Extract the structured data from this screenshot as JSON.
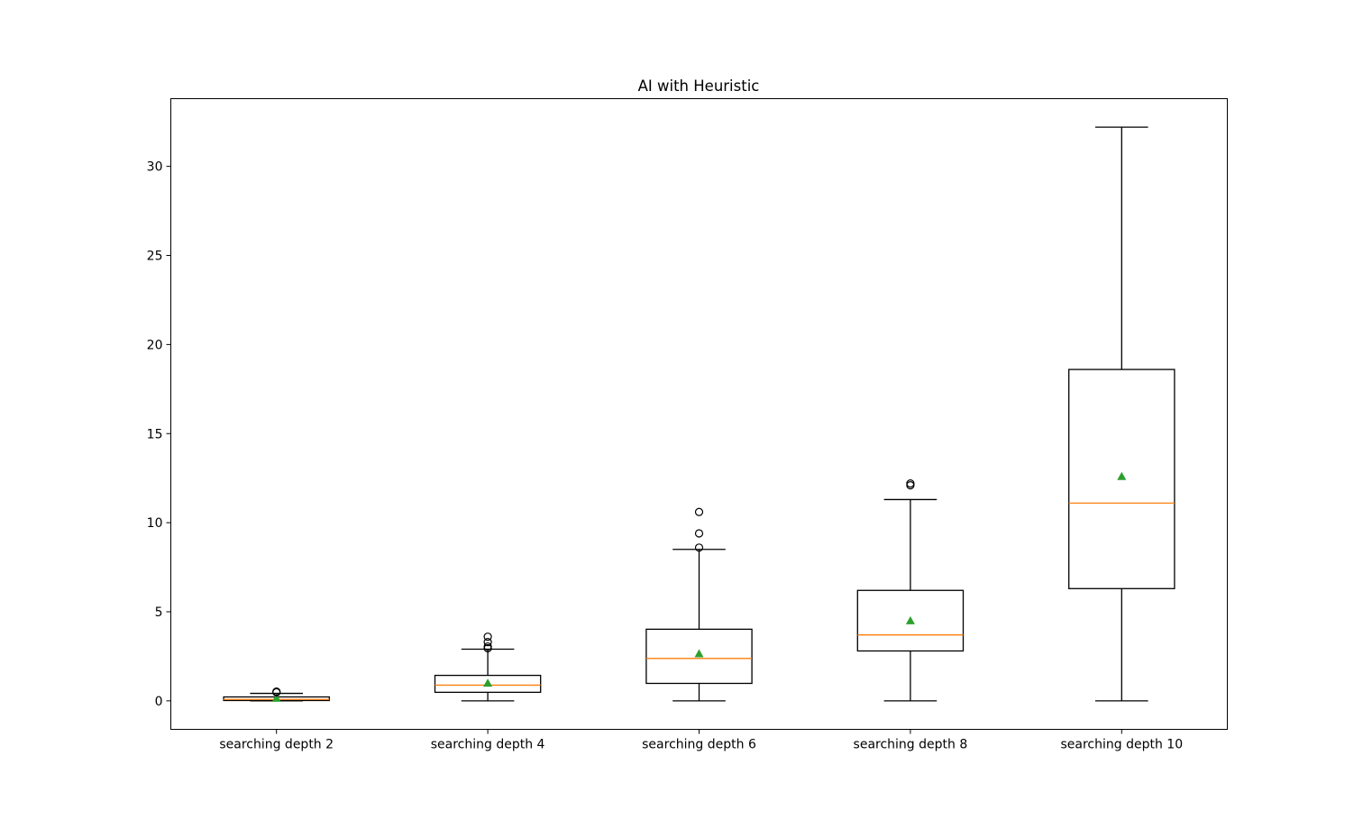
{
  "chart_data": {
    "type": "box",
    "title": "AI with Heuristic",
    "xlabel": "",
    "ylabel": "",
    "ylim": [
      -1.6,
      33.8
    ],
    "yticks": [
      0,
      5,
      10,
      15,
      20,
      25,
      30
    ],
    "grid": false,
    "categories": [
      "searching depth 2",
      "searching depth 4",
      "searching depth 6",
      "searching depth 8",
      "searching depth 10"
    ],
    "boxes": [
      {
        "label": "searching depth 2",
        "whisker_low": 0.0,
        "q1": 0.02,
        "median": 0.08,
        "q3": 0.22,
        "whisker_high": 0.42,
        "mean": 0.15,
        "outliers": [
          0.48,
          0.52
        ]
      },
      {
        "label": "searching depth 4",
        "whisker_low": 0.0,
        "q1": 0.48,
        "median": 0.88,
        "q3": 1.43,
        "whisker_high": 2.9,
        "mean": 1.0,
        "outliers": [
          2.95,
          3.05,
          3.3,
          3.6
        ]
      },
      {
        "label": "searching depth 6",
        "whisker_low": 0.0,
        "q1": 0.98,
        "median": 2.38,
        "q3": 4.02,
        "whisker_high": 8.5,
        "mean": 2.65,
        "outliers": [
          8.6,
          9.4,
          10.6
        ]
      },
      {
        "label": "searching depth 8",
        "whisker_low": 0.0,
        "q1": 2.8,
        "median": 3.7,
        "q3": 6.2,
        "whisker_high": 11.3,
        "mean": 4.5,
        "outliers": [
          12.1,
          12.2
        ]
      },
      {
        "label": "searching depth 10",
        "whisker_low": 0.0,
        "q1": 6.3,
        "median": 11.1,
        "q3": 18.6,
        "whisker_high": 32.2,
        "mean": 12.6,
        "outliers": []
      }
    ],
    "colors": {
      "box": "#000000",
      "median": "#ff7f0e",
      "mean": "#2ca02c",
      "outlier": "#000000"
    }
  }
}
